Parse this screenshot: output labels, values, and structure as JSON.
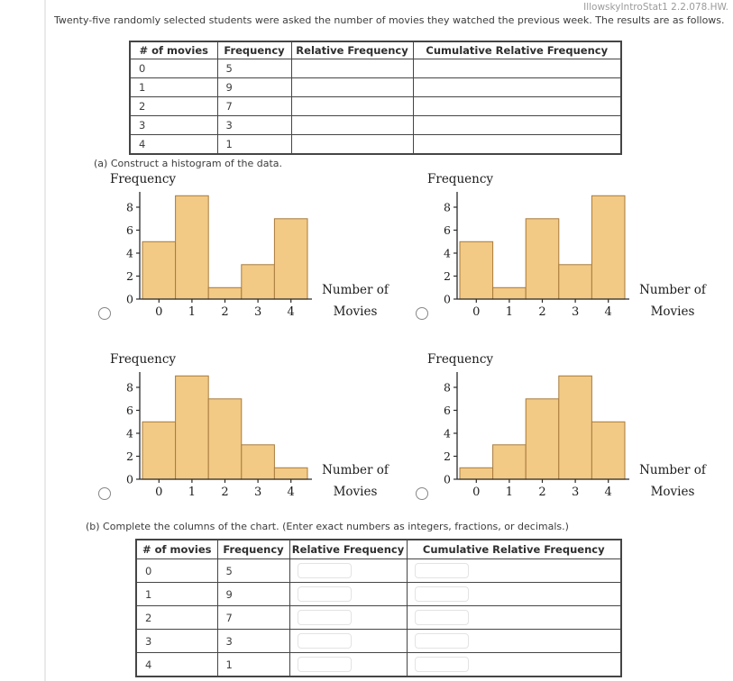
{
  "header": {
    "assignment_tag": "IllowskyIntroStat1 2.2.078.HW."
  },
  "intro_text": "Twenty-five randomly selected students were asked the number of movies they watched the previous week. The results are as follows.",
  "part_a": {
    "label": "(a) Construct a histogram of the data."
  },
  "part_b": {
    "label": "(b) Complete the columns of the chart. (Enter exact numbers as integers, fractions, or decimals.)"
  },
  "data_table": {
    "headers": [
      "# of movies",
      "Frequency",
      "Relative Frequency",
      "Cumulative Relative Frequency"
    ],
    "rows": [
      {
        "movies": "0",
        "frequency": "5"
      },
      {
        "movies": "1",
        "frequency": "9"
      },
      {
        "movies": "2",
        "frequency": "7"
      },
      {
        "movies": "3",
        "frequency": "3"
      },
      {
        "movies": "4",
        "frequency": "1"
      }
    ]
  },
  "answer_table": {
    "headers": [
      "# of movies",
      "Frequency",
      "Relative Frequency",
      "Cumulative Relative Frequency"
    ],
    "rows": [
      {
        "movies": "0",
        "frequency": "5",
        "relative_frequency": "",
        "cumulative_relative_frequency": ""
      },
      {
        "movies": "1",
        "frequency": "9",
        "relative_frequency": "",
        "cumulative_relative_frequency": ""
      },
      {
        "movies": "2",
        "frequency": "7",
        "relative_frequency": "",
        "cumulative_relative_frequency": ""
      },
      {
        "movies": "3",
        "frequency": "3",
        "relative_frequency": "",
        "cumulative_relative_frequency": ""
      },
      {
        "movies": "4",
        "frequency": "1",
        "relative_frequency": "",
        "cumulative_relative_frequency": ""
      }
    ]
  },
  "chart_data": [
    {
      "type": "bar",
      "option": "1",
      "ylabel": "Frequency",
      "xlabel": "Number of Movies",
      "xlabel_lines": [
        "Number of",
        "Movies"
      ],
      "categories": [
        "0",
        "1",
        "2",
        "3",
        "4"
      ],
      "values": [
        5,
        9,
        1,
        3,
        7
      ],
      "yticks": [
        0,
        2,
        4,
        6,
        8
      ],
      "ylim": [
        0,
        9.4
      ],
      "grid": false
    },
    {
      "type": "bar",
      "option": "2",
      "ylabel": "Frequency",
      "xlabel": "Number of Movies",
      "xlabel_lines": [
        "Number of",
        "Movies"
      ],
      "categories": [
        "0",
        "1",
        "2",
        "3",
        "4"
      ],
      "values": [
        5,
        1,
        7,
        3,
        9
      ],
      "yticks": [
        0,
        2,
        4,
        6,
        8
      ],
      "ylim": [
        0,
        9.4
      ],
      "grid": false
    },
    {
      "type": "bar",
      "option": "3",
      "ylabel": "Frequency",
      "xlabel": "Number of Movies",
      "xlabel_lines": [
        "Number of",
        "Movies"
      ],
      "categories": [
        "0",
        "1",
        "2",
        "3",
        "4"
      ],
      "values": [
        5,
        9,
        7,
        3,
        1
      ],
      "yticks": [
        0,
        2,
        4,
        6,
        8
      ],
      "ylim": [
        0,
        9.4
      ],
      "grid": false
    },
    {
      "type": "bar",
      "option": "4",
      "ylabel": "Frequency",
      "xlabel": "Number of Movies",
      "xlabel_lines": [
        "Number of",
        "Movies"
      ],
      "categories": [
        "0",
        "1",
        "2",
        "3",
        "4"
      ],
      "values": [
        1,
        3,
        7,
        9,
        5
      ],
      "yticks": [
        0,
        2,
        4,
        6,
        8
      ],
      "ylim": [
        0,
        9.4
      ],
      "grid": false
    }
  ],
  "colors": {
    "bar_fill": "#F2C985",
    "bar_stroke": "#A87C3C",
    "axis": "#2b2b2b",
    "table_border": "#454545",
    "radio_border": "#878787"
  }
}
